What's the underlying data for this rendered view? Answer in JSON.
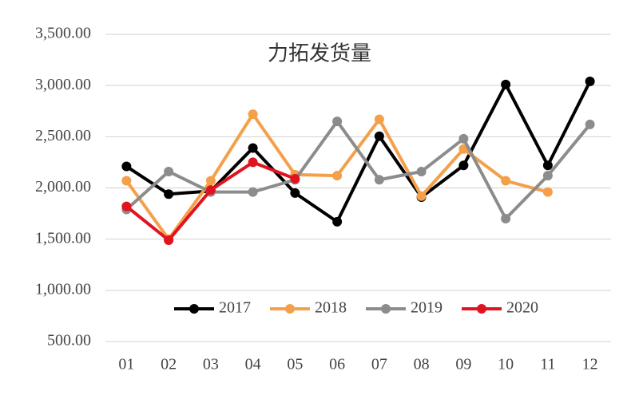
{
  "chart_data": {
    "type": "line",
    "title": "力拓发货量",
    "categories": [
      "01",
      "02",
      "03",
      "04",
      "05",
      "06",
      "07",
      "08",
      "09",
      "10",
      "11",
      "12"
    ],
    "series": [
      {
        "name": "2017",
        "color": "#000000",
        "values": [
          2210,
          1940,
          1970,
          2390,
          1950,
          1670,
          2505,
          1910,
          2220,
          3010,
          2220,
          3040
        ]
      },
      {
        "name": "2018",
        "color": "#f4a04a",
        "values": [
          2070,
          1500,
          2070,
          2720,
          2130,
          2120,
          2670,
          1920,
          2380,
          2070,
          1960,
          null
        ]
      },
      {
        "name": "2019",
        "color": "#8c8c8c",
        "values": [
          1790,
          2160,
          1960,
          1960,
          2080,
          2650,
          2080,
          2160,
          2480,
          1700,
          2120,
          2620
        ]
      },
      {
        "name": "2020",
        "color": "#e0141e",
        "values": [
          1820,
          1490,
          1980,
          2250,
          2090,
          null,
          null,
          null,
          null,
          null,
          null,
          null
        ]
      }
    ],
    "ylim": [
      500,
      3500
    ],
    "yticks": [
      {
        "value": 500,
        "label": "500.00"
      },
      {
        "value": 1000,
        "label": "1,000.00"
      },
      {
        "value": 1500,
        "label": "1,500.00"
      },
      {
        "value": 2000,
        "label": "2,000.00"
      },
      {
        "value": 2500,
        "label": "2,500.00"
      },
      {
        "value": 3000,
        "label": "3,000.00"
      },
      {
        "value": 3500,
        "label": "3,500.00"
      }
    ],
    "grid": true,
    "legend": "bottom"
  }
}
